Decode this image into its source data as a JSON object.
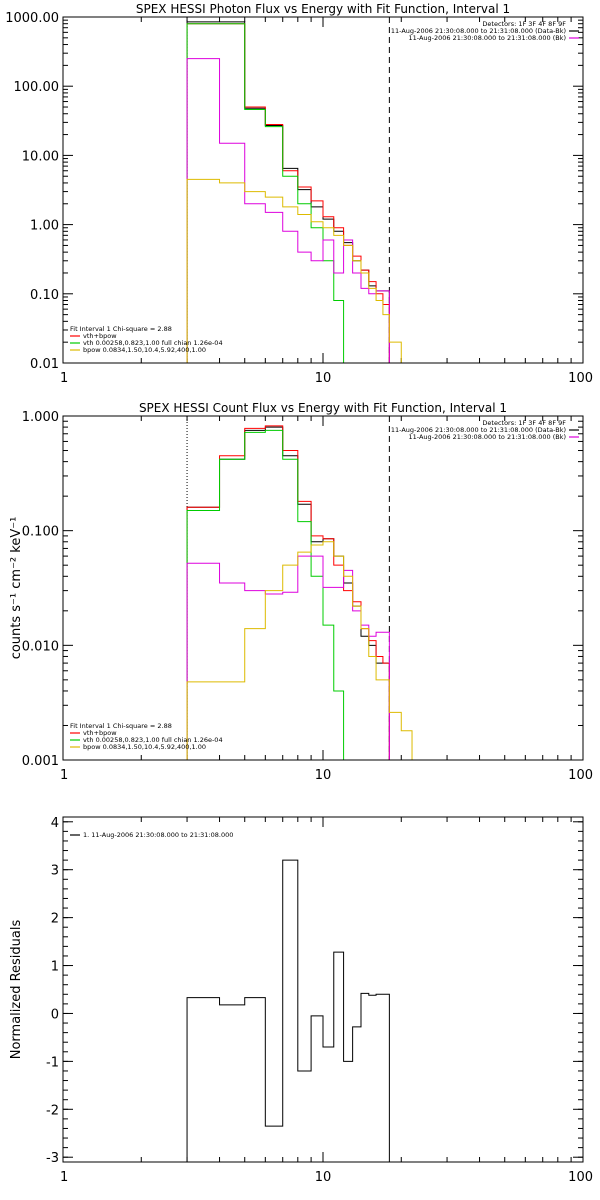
{
  "chart_data": [
    {
      "type": "line",
      "title": "SPEX HESSI Photon Flux vs Energy with Fit Function, Interval 1",
      "ylabel": "",
      "xlabel": "",
      "xscale": "log",
      "yscale": "log",
      "xlim": [
        1,
        100
      ],
      "ylim": [
        0.01,
        1000
      ],
      "xticks": [
        {
          "v": 1,
          "label": "1"
        },
        {
          "v": 10,
          "label": "10"
        },
        {
          "v": 100,
          "label": "100"
        }
      ],
      "yticks": [
        {
          "v": 0.01,
          "label": "0.01"
        },
        {
          "v": 0.1,
          "label": "0.10"
        },
        {
          "v": 1,
          "label": "1.00"
        },
        {
          "v": 10,
          "label": "10.00"
        },
        {
          "v": 100,
          "label": "100.00"
        },
        {
          "v": 1000,
          "label": "1000.00"
        }
      ],
      "edges": [
        3,
        4,
        5,
        6,
        7,
        8,
        9,
        10,
        11,
        12,
        13,
        14,
        15,
        16,
        17,
        18,
        20,
        22
      ],
      "vlines": [
        {
          "x": 3,
          "style": "dotted"
        },
        {
          "x": 18,
          "style": "dashed"
        }
      ],
      "series": [
        {
          "color": "#000000",
          "values": [
            850,
            850,
            48,
            27,
            6.5,
            3.2,
            1.8,
            1.2,
            0.8,
            0.55,
            0.3,
            0.22,
            0.13,
            0.11,
            0.11,
            null,
            null
          ]
        },
        {
          "color": "#ff0000",
          "values": [
            800,
            800,
            50,
            28,
            6.0,
            3.5,
            2.2,
            1.3,
            0.9,
            0.5,
            0.35,
            0.22,
            0.15,
            0.1,
            0.07,
            null,
            null
          ]
        },
        {
          "color": "#00cc00",
          "values": [
            800,
            800,
            46,
            26,
            5.0,
            2.0,
            0.9,
            0.3,
            0.08,
            0.01,
            null,
            null,
            null,
            null,
            null,
            null,
            null
          ]
        },
        {
          "color": "#dd00dd",
          "values": [
            250,
            15,
            2.0,
            1.5,
            0.8,
            0.4,
            0.3,
            0.6,
            0.2,
            0.6,
            0.2,
            0.12,
            0.1,
            0.11,
            0.11,
            null,
            null
          ]
        },
        {
          "color": "#ddbb00",
          "values": [
            4.5,
            4.0,
            3.0,
            2.5,
            1.8,
            1.4,
            1.1,
            0.9,
            0.7,
            0.5,
            0.3,
            0.2,
            0.12,
            0.08,
            0.05,
            0.02,
            0.01
          ]
        }
      ],
      "header_lines": [
        "Detectors: 1F 3F 4F 8F 9F",
        "11-Aug-2006 21:30:08.000 to 21:31:08.000 (Data-Bk)",
        "11-Aug-2006 21:30:08.000 to 21:31:08.000 (Bk)"
      ],
      "header_colors": [
        "",
        "#000000",
        "#dd00dd"
      ],
      "legend_header": "Fit Interval 1    Chi-square = 2.88",
      "legend": [
        {
          "label": "vth+bpow",
          "color": "#ff0000"
        },
        {
          "label": "vth 0.00258,0.823,1.00   full chian 1.26e-04",
          "color": "#00cc00"
        },
        {
          "label": "bpow 0.0834,1.50,10.4,5.92,400,1.00",
          "color": "#ddbb00"
        }
      ]
    },
    {
      "type": "line",
      "title": "SPEX HESSI Count Flux vs Energy with Fit Function, Interval 1",
      "ylabel": "counts s⁻¹ cm⁻² keV⁻¹",
      "xlabel": "",
      "xscale": "log",
      "yscale": "log",
      "xlim": [
        1,
        100
      ],
      "ylim": [
        0.001,
        1
      ],
      "xticks": [
        {
          "v": 1,
          "label": "1"
        },
        {
          "v": 10,
          "label": "10"
        },
        {
          "v": 100,
          "label": "100"
        }
      ],
      "yticks": [
        {
          "v": 0.001,
          "label": "0.001"
        },
        {
          "v": 0.01,
          "label": "0.010"
        },
        {
          "v": 0.1,
          "label": "0.100"
        },
        {
          "v": 1,
          "label": "1.000"
        }
      ],
      "edges": [
        3,
        4,
        5,
        6,
        7,
        8,
        9,
        10,
        11,
        12,
        13,
        14,
        15,
        16,
        17,
        18,
        20,
        22
      ],
      "vlines": [
        {
          "x": 3,
          "style": "dotted"
        },
        {
          "x": 18,
          "style": "dashed"
        }
      ],
      "series": [
        {
          "color": "#000000",
          "values": [
            0.16,
            0.42,
            0.75,
            0.8,
            0.45,
            0.17,
            0.08,
            0.085,
            0.06,
            0.035,
            0.022,
            0.012,
            0.01,
            0.007,
            0.007,
            null,
            null
          ]
        },
        {
          "color": "#ff0000",
          "values": [
            0.16,
            0.45,
            0.78,
            0.82,
            0.5,
            0.18,
            0.09,
            0.085,
            0.05,
            0.03,
            0.024,
            0.014,
            0.011,
            0.008,
            0.007,
            null,
            null
          ]
        },
        {
          "color": "#00cc00",
          "values": [
            0.15,
            0.42,
            0.72,
            0.75,
            0.42,
            0.12,
            0.04,
            0.015,
            0.004,
            0.001,
            null,
            null,
            null,
            null,
            null,
            null,
            null
          ]
        },
        {
          "color": "#dd00dd",
          "values": [
            0.052,
            0.035,
            0.03,
            0.028,
            0.029,
            0.06,
            0.06,
            0.032,
            0.032,
            0.045,
            0.02,
            0.015,
            0.012,
            0.013,
            0.013,
            null,
            null
          ]
        },
        {
          "color": "#ddbb00",
          "values": [
            0.0048,
            0.0048,
            0.014,
            0.03,
            0.05,
            0.065,
            0.075,
            0.08,
            0.06,
            0.04,
            0.022,
            0.014,
            0.008,
            0.005,
            0.005,
            0.0026,
            0.0018
          ]
        }
      ],
      "header_lines": [
        "Detectors: 1F 3F 4F 8F 9F",
        "11-Aug-2006 21:30:08.000 to 21:31:08.000 (Data-Bk)",
        "11-Aug-2006 21:30:08.000 to 21:31:08.000 (Bk)"
      ],
      "header_colors": [
        "",
        "#000000",
        "#dd00dd"
      ],
      "legend_header": "Fit Interval 1    Chi-square = 2.88",
      "legend": [
        {
          "label": "vth+bpow",
          "color": "#ff0000"
        },
        {
          "label": "vth 0.00258,0.823,1.00   full chian 1.26e-04",
          "color": "#00cc00"
        },
        {
          "label": "bpow 0.0834,1.50,10.4,5.92,400,1.00",
          "color": "#ddbb00"
        }
      ]
    },
    {
      "type": "line",
      "title": "",
      "ylabel": "Normalized Residuals",
      "xlabel": "",
      "xscale": "log",
      "yscale": "linear",
      "xlim": [
        1,
        100
      ],
      "ylim": [
        -3.1,
        4.1
      ],
      "xticks": [
        {
          "v": 1,
          "label": "1"
        },
        {
          "v": 10,
          "label": "10"
        },
        {
          "v": 100,
          "label": "100"
        }
      ],
      "yticks": [
        {
          "v": -3,
          "label": "-3"
        },
        {
          "v": -2,
          "label": "-2"
        },
        {
          "v": -1,
          "label": "-1"
        },
        {
          "v": 0,
          "label": "0"
        },
        {
          "v": 1,
          "label": "1"
        },
        {
          "v": 2,
          "label": "2"
        },
        {
          "v": 3,
          "label": "3"
        },
        {
          "v": 4,
          "label": "4"
        }
      ],
      "edges": [
        3,
        4,
        5,
        6,
        7,
        8,
        9,
        10,
        11,
        12,
        13,
        14,
        15,
        16,
        17,
        18
      ],
      "series": [
        {
          "color": "#000000",
          "values": [
            0.33,
            0.18,
            0.33,
            -2.35,
            3.2,
            -1.2,
            -0.05,
            -0.7,
            1.28,
            -1.0,
            -0.28,
            0.42,
            0.38,
            0.4,
            0.4
          ]
        }
      ],
      "residual_drop": true,
      "header_lines": [],
      "header_colors": [],
      "legend_header": "",
      "legend": [
        {
          "label": "1. 11-Aug-2006 21:30:08.000 to 21:31:08.000",
          "color": "#000000"
        }
      ]
    }
  ]
}
